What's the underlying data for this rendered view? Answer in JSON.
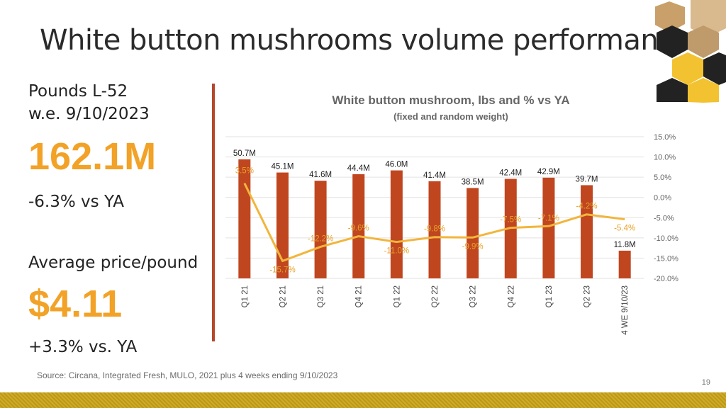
{
  "page": {
    "title": "White button mushrooms volume performance",
    "source": "Source: Circana, Integrated Fresh, MULO, 2021 plus 4 weeks ending 9/10/2023",
    "page_number": "19"
  },
  "kpis": {
    "pounds_label_line1": "Pounds L-52",
    "pounds_label_line2": "w.e. 9/10/2023",
    "pounds_value": "162.1M",
    "pounds_change": "-6.3% vs YA",
    "price_label": "Average price/pound",
    "price_value": "$4.11",
    "price_change": "+3.3% vs. YA",
    "accent_color": "#f2a227"
  },
  "colors": {
    "bar": "#c0461f",
    "line": "#f2b53c",
    "divider": "#b5472a",
    "footer": "#c9a214"
  },
  "chart_data": {
    "type": "bar",
    "title": "White button mushroom, lbs and % vs YA",
    "subtitle": "(fixed and random weight)",
    "categories": [
      "Q1 21",
      "Q2 21",
      "Q3 21",
      "Q4 21",
      "Q1 22",
      "Q2 22",
      "Q3 22",
      "Q4 22",
      "Q1 23",
      "Q2 23",
      "4 WE 9/10/23"
    ],
    "series": [
      {
        "type": "bar",
        "values": [
          50.7,
          45.1,
          41.6,
          44.4,
          46.0,
          41.4,
          38.5,
          42.4,
          42.9,
          39.7,
          11.8
        ],
        "labels": [
          "50.7M",
          "45.1M",
          "41.6M",
          "44.4M",
          "46.0M",
          "41.4M",
          "38.5M",
          "42.4M",
          "42.9M",
          "39.7M",
          "11.8M"
        ]
      },
      {
        "type": "line",
        "axis": "right",
        "values": [
          3.5,
          -15.7,
          -12.2,
          -9.6,
          -11.0,
          -9.8,
          -9.9,
          -7.5,
          -7.1,
          -4.2,
          -5.4
        ],
        "labels": [
          "3.5%",
          "-15.7%",
          "-12.2%",
          "-9.6%",
          "-11.0%",
          "-9.8%",
          "-9.9%",
          "-7.5%",
          "-7.1%",
          "-4.2%",
          "-5.4%"
        ]
      }
    ],
    "right_axis": {
      "ylim": [
        -20,
        15
      ],
      "ticks": [
        "15.0%",
        "10.0%",
        "5.0%",
        "0.0%",
        "-5.0%",
        "-10.0%",
        "-15.0%",
        "-20.0%"
      ]
    },
    "grid": true
  }
}
